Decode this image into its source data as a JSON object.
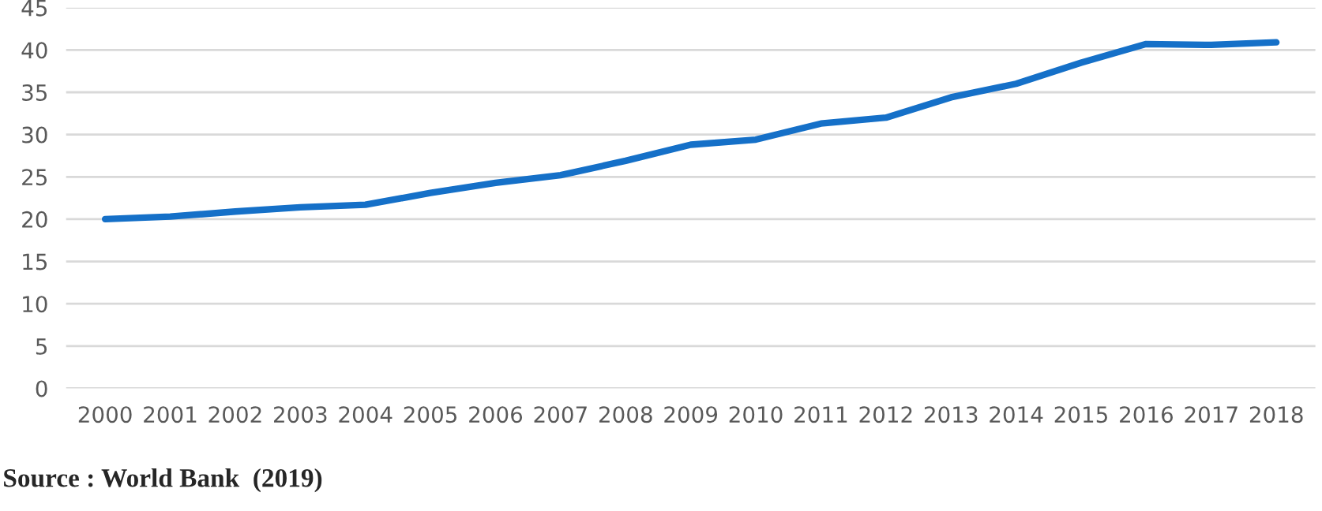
{
  "chart_data": {
    "type": "line",
    "categories": [
      "2000",
      "2001",
      "2002",
      "2003",
      "2004",
      "2005",
      "2006",
      "2007",
      "2008",
      "2009",
      "2010",
      "2011",
      "2012",
      "2013",
      "2014",
      "2015",
      "2016",
      "2017",
      "2018"
    ],
    "series": [
      {
        "color": "#1570c8",
        "values": [
          20.0,
          20.3,
          20.9,
          21.4,
          21.7,
          23.1,
          24.3,
          25.2,
          26.9,
          28.8,
          29.4,
          31.3,
          32.0,
          34.4,
          36.0,
          38.5,
          40.7,
          40.6,
          40.9
        ]
      }
    ],
    "ylim": [
      0,
      45
    ],
    "yticks": [
      0,
      5,
      10,
      15,
      20,
      25,
      30,
      35,
      40,
      45
    ],
    "grid": "y",
    "legend": false,
    "annotations": [
      "Source : World Bank  (2019)"
    ]
  }
}
